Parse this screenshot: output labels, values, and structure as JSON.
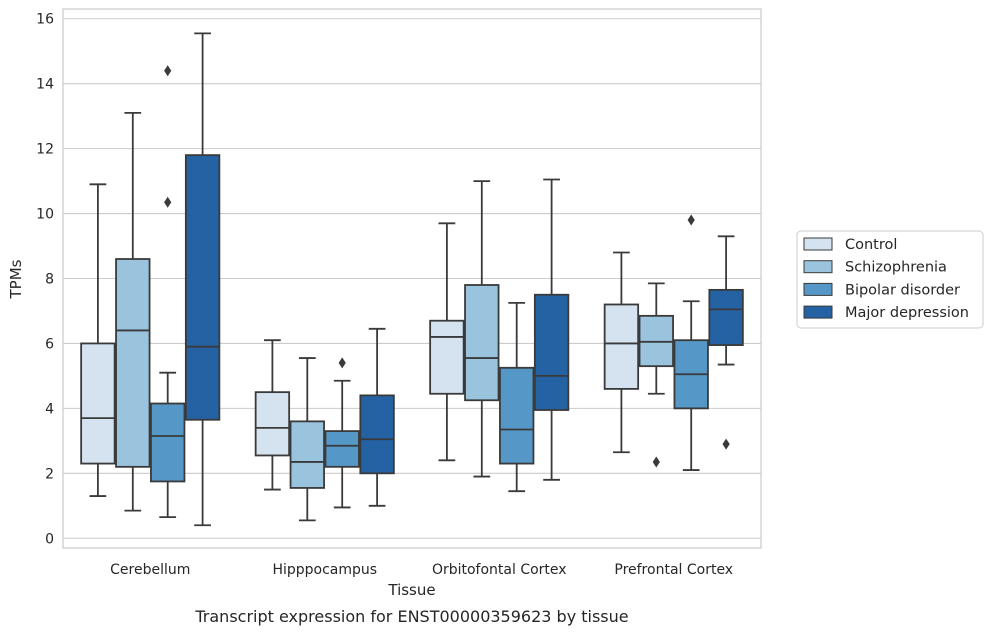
{
  "caption": "Transcript expression for ENST00000359623 by tissue",
  "chart_data": {
    "type": "box",
    "xlabel": "Tissue",
    "ylabel": "TPMs",
    "ylim": [
      -0.3,
      16.3
    ],
    "yticks": [
      0,
      2,
      4,
      6,
      8,
      10,
      12,
      14,
      16
    ],
    "grid": true,
    "legend_position": "right",
    "categories": [
      "Cerebellum",
      "Hipppocampus",
      "Orbitofontal Cortex",
      "Prefrontal Cortex"
    ],
    "series": [
      {
        "name": "Control",
        "color": "#d5e3f1",
        "boxes": [
          {
            "whislo": 1.3,
            "q1": 2.3,
            "med": 3.7,
            "q3": 6.0,
            "whishi": 10.9,
            "fliers": []
          },
          {
            "whislo": 1.5,
            "q1": 2.55,
            "med": 3.4,
            "q3": 4.5,
            "whishi": 6.1,
            "fliers": []
          },
          {
            "whislo": 2.4,
            "q1": 4.45,
            "med": 6.2,
            "q3": 6.7,
            "whishi": 9.7,
            "fliers": []
          },
          {
            "whislo": 2.65,
            "q1": 4.6,
            "med": 6.0,
            "q3": 7.2,
            "whishi": 8.8,
            "fliers": []
          }
        ]
      },
      {
        "name": "Schizophrenia",
        "color": "#9ac4de",
        "boxes": [
          {
            "whislo": 0.85,
            "q1": 2.2,
            "med": 6.4,
            "q3": 8.6,
            "whishi": 13.1,
            "fliers": []
          },
          {
            "whislo": 0.55,
            "q1": 1.55,
            "med": 2.35,
            "q3": 3.6,
            "whishi": 5.55,
            "fliers": []
          },
          {
            "whislo": 1.9,
            "q1": 4.25,
            "med": 5.55,
            "q3": 7.8,
            "whishi": 11.0,
            "fliers": []
          },
          {
            "whislo": 4.45,
            "q1": 5.3,
            "med": 6.05,
            "q3": 6.85,
            "whishi": 7.85,
            "fliers": [
              2.35
            ]
          }
        ]
      },
      {
        "name": "Bipolar disorder",
        "color": "#5597c6",
        "boxes": [
          {
            "whislo": 0.65,
            "q1": 1.75,
            "med": 3.15,
            "q3": 4.15,
            "whishi": 5.1,
            "fliers": [
              10.35,
              14.4
            ]
          },
          {
            "whislo": 0.95,
            "q1": 2.2,
            "med": 2.85,
            "q3": 3.3,
            "whishi": 4.85,
            "fliers": [
              5.4
            ]
          },
          {
            "whislo": 1.45,
            "q1": 2.3,
            "med": 3.35,
            "q3": 5.25,
            "whishi": 7.25,
            "fliers": []
          },
          {
            "whislo": 2.1,
            "q1": 4.0,
            "med": 5.05,
            "q3": 6.1,
            "whishi": 7.3,
            "fliers": [
              9.8
            ]
          }
        ]
      },
      {
        "name": "Major depression",
        "color": "#2462a4",
        "boxes": [
          {
            "whislo": 0.4,
            "q1": 3.65,
            "med": 5.9,
            "q3": 11.8,
            "whishi": 15.55,
            "fliers": []
          },
          {
            "whislo": 1.0,
            "q1": 2.0,
            "med": 3.05,
            "q3": 4.4,
            "whishi": 6.45,
            "fliers": []
          },
          {
            "whislo": 1.8,
            "q1": 3.95,
            "med": 5.0,
            "q3": 7.5,
            "whishi": 11.05,
            "fliers": []
          },
          {
            "whislo": 5.35,
            "q1": 5.95,
            "med": 7.05,
            "q3": 7.65,
            "whishi": 9.3,
            "fliers": [
              2.9
            ]
          }
        ]
      }
    ]
  }
}
